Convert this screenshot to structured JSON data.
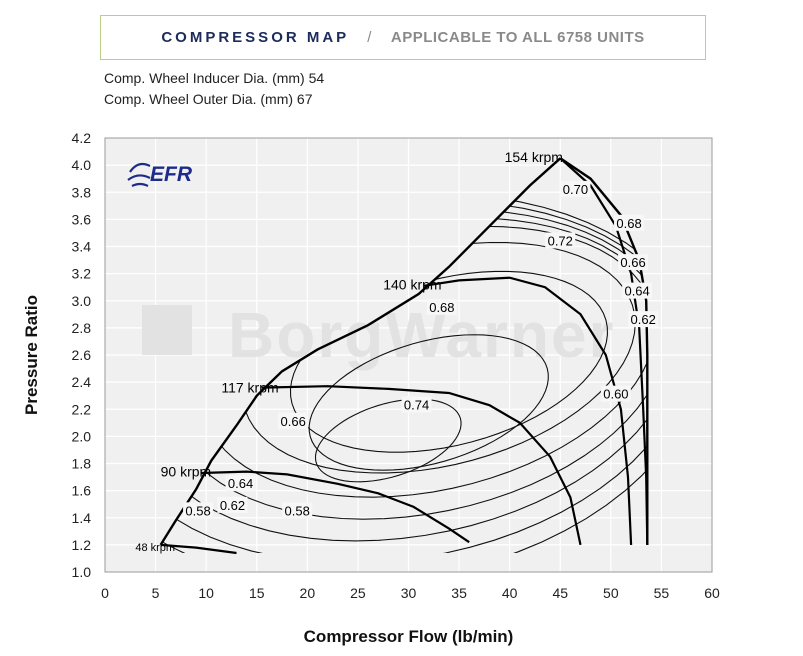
{
  "header": {
    "title": "COMPRESSOR MAP",
    "separator": "/",
    "subtitle": "APPLICABLE TO ALL 6758 UNITS"
  },
  "specs": [
    "Comp. Wheel Inducer Dia. (mm) 54",
    "Comp. Wheel Outer Dia. (mm) 67"
  ],
  "logo": {
    "text": "EFR",
    "color": "#1d2b8a"
  },
  "watermark": "BorgWarner",
  "chart_data": {
    "type": "line",
    "xlabel": "Compressor Flow (lb/min)",
    "ylabel": "Pressure Ratio",
    "xlim": [
      0,
      60
    ],
    "ylim": [
      1.0,
      4.2
    ],
    "xticks": [
      0,
      5,
      10,
      15,
      20,
      25,
      30,
      35,
      40,
      45,
      50,
      55,
      60
    ],
    "yticks": [
      1.0,
      1.2,
      1.4,
      1.6,
      1.8,
      2.0,
      2.2,
      2.4,
      2.6,
      2.8,
      3.0,
      3.2,
      3.4,
      3.6,
      3.8,
      4.0,
      4.2
    ],
    "grid": true,
    "background": "#f0f0f0",
    "boundary": {
      "surge": [
        [
          5.5,
          1.2
        ],
        [
          7,
          1.38
        ],
        [
          9,
          1.61
        ],
        [
          10.5,
          1.82
        ],
        [
          13,
          2.08
        ],
        [
          15,
          2.3
        ],
        [
          17.5,
          2.48
        ],
        [
          21,
          2.64
        ],
        [
          26,
          2.82
        ],
        [
          31,
          3.05
        ],
        [
          34,
          3.25
        ],
        [
          38,
          3.55
        ],
        [
          42,
          3.85
        ],
        [
          45,
          4.05
        ]
      ],
      "choke": [
        [
          45,
          4.05
        ],
        [
          48,
          3.9
        ],
        [
          51,
          3.63
        ],
        [
          52.8,
          3.3
        ],
        [
          53.5,
          3.0
        ],
        [
          53.6,
          2.6
        ],
        [
          53.6,
          1.2
        ]
      ]
    },
    "speed_lines": [
      {
        "name": "48 krpm",
        "points": [
          [
            5.5,
            1.2
          ],
          [
            9,
            1.18
          ],
          [
            13,
            1.14
          ]
        ]
      },
      {
        "name": "90 krpm",
        "points": [
          [
            9.5,
            1.73
          ],
          [
            14,
            1.74
          ],
          [
            18,
            1.72
          ],
          [
            23,
            1.65
          ],
          [
            27,
            1.58
          ],
          [
            30.5,
            1.48
          ],
          [
            34,
            1.32
          ],
          [
            36,
            1.22
          ]
        ]
      },
      {
        "name": "117 krpm",
        "points": [
          [
            15.5,
            2.36
          ],
          [
            22,
            2.37
          ],
          [
            28,
            2.35
          ],
          [
            34,
            2.32
          ],
          [
            38,
            2.23
          ],
          [
            41,
            2.1
          ],
          [
            44,
            1.85
          ],
          [
            46,
            1.55
          ],
          [
            47,
            1.2
          ]
        ]
      },
      {
        "name": "140 krpm",
        "points": [
          [
            31.5,
            3.11
          ],
          [
            35,
            3.15
          ],
          [
            40,
            3.17
          ],
          [
            43.5,
            3.1
          ],
          [
            47,
            2.9
          ],
          [
            49.5,
            2.6
          ],
          [
            51,
            2.2
          ],
          [
            51.7,
            1.7
          ],
          [
            52,
            1.2
          ]
        ]
      },
      {
        "name": "154 krpm",
        "points": [
          [
            45,
            4.05
          ],
          [
            48,
            3.85
          ],
          [
            50.5,
            3.55
          ],
          [
            52,
            3.2
          ],
          [
            52.8,
            2.8
          ],
          [
            53.2,
            2.2
          ],
          [
            53.5,
            1.7
          ],
          [
            53.6,
            1.2
          ]
        ]
      }
    ],
    "efficiency_islands": [
      {
        "label": "0.74",
        "center": [
          28,
          1.97
        ],
        "rx": 8,
        "ry": 0.25,
        "angle": 34
      },
      {
        "label": "0.72",
        "center": [
          32,
          2.25
        ],
        "rx": 13,
        "ry": 0.42,
        "angle": 33
      },
      {
        "label": "0.70",
        "center": [
          34,
          2.55
        ],
        "rx": 17,
        "ry": 0.58,
        "angle": 32
      },
      {
        "label": "0.68",
        "center": [
          33,
          2.58
        ],
        "rx": 21,
        "ry": 0.75,
        "angle": 33
      },
      {
        "label": "0.66",
        "center": [
          32,
          2.55
        ],
        "rx": 24,
        "ry": 0.9,
        "angle": 33
      },
      {
        "label": "0.64",
        "center": [
          31,
          2.5
        ],
        "rx": 26,
        "ry": 1.02,
        "angle": 33
      },
      {
        "label": "0.62",
        "center": [
          30,
          2.45
        ],
        "rx": 28,
        "ry": 1.13,
        "angle": 34
      },
      {
        "label": "0.60",
        "center": [
          29,
          2.4
        ],
        "rx": 30,
        "ry": 1.25,
        "angle": 34
      },
      {
        "label": "0.58",
        "center": [
          28,
          2.35
        ],
        "rx": 32,
        "ry": 1.36,
        "angle": 34
      }
    ],
    "speed_labels": [
      {
        "text": "154 krpm",
        "x": 39.5,
        "y": 4.06
      },
      {
        "text": "140 krpm",
        "x": 27.5,
        "y": 3.12
      },
      {
        "text": "117 krpm",
        "x": 11.5,
        "y": 2.36
      },
      {
        "text": "90 krpm",
        "x": 5.5,
        "y": 1.74
      },
      {
        "text": "48 krpm",
        "x": 3.0,
        "y": 1.19
      }
    ],
    "efficiency_labels": [
      {
        "text": "0.74",
        "x": 30.8,
        "y": 2.22
      },
      {
        "text": "0.72",
        "x": 45.0,
        "y": 3.43
      },
      {
        "text": "0.70",
        "x": 46.5,
        "y": 3.81
      },
      {
        "text": "0.68",
        "x": 33.3,
        "y": 2.94
      },
      {
        "text": "0.68",
        "x": 51.8,
        "y": 3.56
      },
      {
        "text": "0.66",
        "x": 52.2,
        "y": 3.27
      },
      {
        "text": "0.64",
        "x": 52.6,
        "y": 3.06
      },
      {
        "text": "0.62",
        "x": 53.2,
        "y": 2.85
      },
      {
        "text": "0.60",
        "x": 50.5,
        "y": 2.3
      },
      {
        "text": "0.66",
        "x": 18.6,
        "y": 2.1
      },
      {
        "text": "0.64",
        "x": 13.4,
        "y": 1.64
      },
      {
        "text": "0.62",
        "x": 12.6,
        "y": 1.48
      },
      {
        "text": "0.58",
        "x": 9.2,
        "y": 1.44
      },
      {
        "text": "0.58",
        "x": 19.0,
        "y": 1.44
      }
    ]
  }
}
